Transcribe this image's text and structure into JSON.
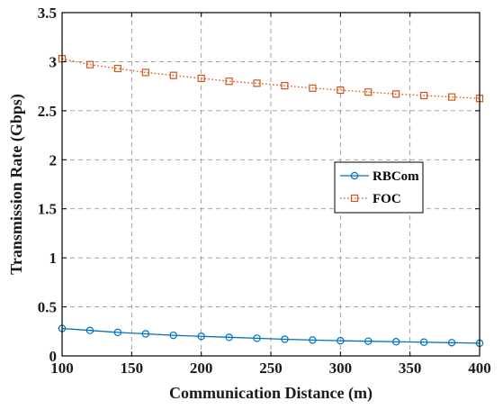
{
  "chart_data": {
    "type": "line",
    "xlabel": "Communication Distance (m)",
    "ylabel": "Transmission Rate (Gbps)",
    "xlim": [
      100,
      400
    ],
    "ylim": [
      0,
      3.5
    ],
    "x_ticks": [
      100,
      150,
      200,
      250,
      300,
      350,
      400
    ],
    "y_ticks": [
      0,
      0.5,
      1,
      1.5,
      2,
      2.5,
      3,
      3.5
    ],
    "x_tick_labels": [
      "100",
      "150",
      "200",
      "250",
      "300",
      "350",
      "400"
    ],
    "y_tick_labels": [
      "0",
      "0.5",
      "1",
      "1.5",
      "2",
      "2.5",
      "3",
      "3.5"
    ],
    "grid": true,
    "legend_position": "right-middle",
    "x": [
      100,
      120,
      140,
      160,
      180,
      200,
      220,
      240,
      260,
      280,
      300,
      320,
      340,
      360,
      380,
      400
    ],
    "series": [
      {
        "name": "RBCom",
        "color": "#0072BD",
        "marker": "circle",
        "line_style": "solid",
        "values": [
          0.28,
          0.26,
          0.24,
          0.225,
          0.21,
          0.2,
          0.19,
          0.18,
          0.17,
          0.162,
          0.155,
          0.15,
          0.145,
          0.14,
          0.135,
          0.13
        ]
      },
      {
        "name": "FOC",
        "color": "#D95319",
        "marker": "square",
        "line_style": "dotted",
        "values": [
          3.03,
          2.97,
          2.93,
          2.89,
          2.86,
          2.83,
          2.8,
          2.78,
          2.755,
          2.73,
          2.71,
          2.69,
          2.67,
          2.655,
          2.64,
          2.625
        ]
      }
    ]
  }
}
